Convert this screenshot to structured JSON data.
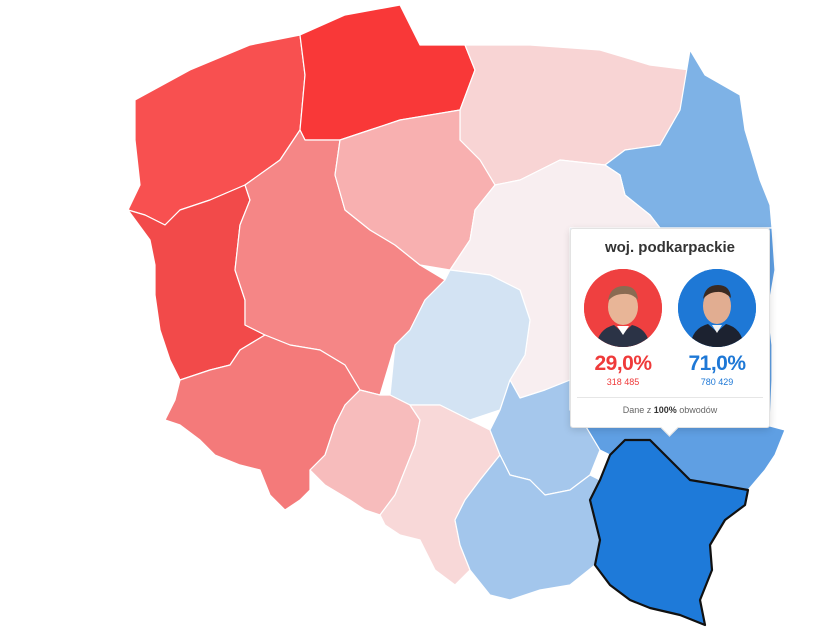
{
  "map": {
    "selected_region": "woj. podkarpackie",
    "regions": [
      {
        "id": "zachodniopomorskie",
        "color": "#f85050"
      },
      {
        "id": "pomorskie",
        "color": "#f93838"
      },
      {
        "id": "warminsko-mazurskie",
        "color": "#f8d4d4"
      },
      {
        "id": "podlaskie",
        "color": "#7eb2e6"
      },
      {
        "id": "lubuskie",
        "color": "#f24a4a"
      },
      {
        "id": "wielkopolskie",
        "color": "#f58686"
      },
      {
        "id": "kujawsko-pomorskie",
        "color": "#f8b0b0"
      },
      {
        "id": "mazowieckie",
        "color": "#f8eef0"
      },
      {
        "id": "lodzkie",
        "color": "#d3e3f3"
      },
      {
        "id": "dolnoslaskie",
        "color": "#f47a7a"
      },
      {
        "id": "opolskie",
        "color": "#f7bcbc"
      },
      {
        "id": "slaskie",
        "color": "#f8d8d8"
      },
      {
        "id": "swietokrzyskie",
        "color": "#a5c7ec"
      },
      {
        "id": "lubelskie",
        "color": "#5f9fe3"
      },
      {
        "id": "malopolskie",
        "color": "#a3c6ec"
      },
      {
        "id": "podkarpackie",
        "color": "#1e7ad9"
      }
    ]
  },
  "tooltip": {
    "title": "woj. podkarpackie",
    "candidates": [
      {
        "percent": "29,0%",
        "votes": "318 485",
        "color": "#ef3a3a",
        "avatar_bg": "#ef4040",
        "avatar": "candidate-trzaskowski-avatar"
      },
      {
        "percent": "71,0%",
        "votes": "780 429",
        "color": "#1e78d6",
        "avatar_bg": "#1e78d6",
        "avatar": "candidate-nawrocki-avatar"
      }
    ],
    "footer_prefix": "Dane z ",
    "footer_bold": "100%",
    "footer_suffix": " obwodów"
  }
}
